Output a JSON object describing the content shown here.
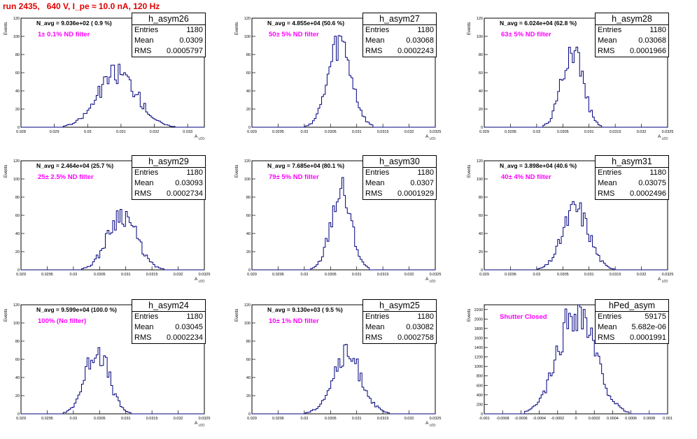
{
  "title": "run 2435,   640 V, I_pe ≈ 10.0 nA, 120 Hz",
  "colors": {
    "title": "#e00000",
    "histogram": "#00007f",
    "note": "#ff00ff"
  },
  "chart_data": [
    {
      "type": "bar",
      "name": "h_asym26",
      "navg_text": "N_avg = 9.036e+02 ( 0.9 %)",
      "filter_text": "1± 0.1% ND filter",
      "ylabel": "Events",
      "xlabel": "A_LED",
      "xlim": [
        0.028,
        0.0335
      ],
      "ylim": [
        0,
        120
      ],
      "xticks": [
        0.028,
        0.029,
        0.03,
        0.031,
        0.032,
        0.033
      ],
      "xtick_labels": [
        "0.028",
        "0.029",
        "0.03",
        "0.031",
        "0.032",
        "0.033"
      ],
      "yticks": [
        0,
        20,
        40,
        60,
        80,
        100,
        120
      ],
      "stats": {
        "entries": "1180",
        "mean": "0.0309",
        "rms": "0.0005797"
      },
      "mean": 0.0309,
      "rms": 0.0005797,
      "peak": 60,
      "seed": 26
    },
    {
      "type": "bar",
      "name": "h_asym27",
      "navg_text": "N_avg = 4.855e+04 (50.6 %)",
      "filter_text": "50± 5% ND filter",
      "ylabel": "Events",
      "xlabel": "A_LED",
      "xlim": [
        0.029,
        0.0325
      ],
      "ylim": [
        0,
        120
      ],
      "xticks": [
        0.029,
        0.0295,
        0.03,
        0.0305,
        0.031,
        0.0315,
        0.032,
        0.0325
      ],
      "xtick_labels": [
        "0.029",
        "0.0295",
        "0.03",
        "0.0305",
        "0.031",
        "0.0315",
        "0.032",
        "0.0325"
      ],
      "yticks": [
        0,
        20,
        40,
        60,
        80,
        100,
        120
      ],
      "stats": {
        "entries": "1180",
        "mean": "0.03068",
        "rms": "0.0002243"
      },
      "mean": 0.03068,
      "rms": 0.0002243,
      "peak": 90,
      "seed": 27
    },
    {
      "type": "bar",
      "name": "h_asym28",
      "navg_text": "N_avg = 6.024e+04 (62.8 %)",
      "filter_text": "63± 5% ND filter",
      "ylabel": "Events",
      "xlabel": "A_LED",
      "xlim": [
        0.029,
        0.0325
      ],
      "ylim": [
        0,
        120
      ],
      "xticks": [
        0.029,
        0.0295,
        0.03,
        0.0305,
        0.031,
        0.0315,
        0.032,
        0.0325
      ],
      "xtick_labels": [
        "0.029",
        "0.0295",
        "0.03",
        "0.0305",
        "0.031",
        "0.0315",
        "0.032",
        "0.0325"
      ],
      "yticks": [
        0,
        20,
        40,
        60,
        80,
        100,
        120
      ],
      "stats": {
        "entries": "1180",
        "mean": "0.03068",
        "rms": "0.0001966"
      },
      "mean": 0.03068,
      "rms": 0.0001966,
      "peak": 90,
      "seed": 28
    },
    {
      "type": "bar",
      "name": "h_asym29",
      "navg_text": "N_avg = 2.464e+04 (25.7 %)",
      "filter_text": "25± 2.5% ND filter",
      "ylabel": "Events",
      "xlabel": "A_LED",
      "xlim": [
        0.029,
        0.0325
      ],
      "ylim": [
        0,
        120
      ],
      "xticks": [
        0.029,
        0.0295,
        0.03,
        0.0305,
        0.031,
        0.0315,
        0.032,
        0.0325
      ],
      "xtick_labels": [
        "0.029",
        "0.0295",
        "0.03",
        "0.0305",
        "0.031",
        "0.0315",
        "0.032",
        "0.0325"
      ],
      "yticks": [
        0,
        20,
        40,
        60,
        80,
        100,
        120
      ],
      "stats": {
        "entries": "1180",
        "mean": "0.03093",
        "rms": "0.0002734"
      },
      "mean": 0.03093,
      "rms": 0.0002734,
      "peak": 62,
      "seed": 29
    },
    {
      "type": "bar",
      "name": "h_asym30",
      "navg_text": "N_avg = 7.685e+04 (80.1 %)",
      "filter_text": "79± 5% ND filter",
      "ylabel": "Events",
      "xlabel": "A_LED",
      "xlim": [
        0.029,
        0.0325
      ],
      "ylim": [
        0,
        120
      ],
      "xticks": [
        0.029,
        0.0295,
        0.03,
        0.0305,
        0.031,
        0.0315,
        0.032,
        0.0325
      ],
      "xtick_labels": [
        "0.029",
        "0.0295",
        "0.03",
        "0.0305",
        "0.031",
        "0.0315",
        "0.032",
        "0.0325"
      ],
      "yticks": [
        0,
        20,
        40,
        60,
        80,
        100,
        120
      ],
      "stats": {
        "entries": "1180",
        "mean": "0.0307",
        "rms": "0.0001929"
      },
      "mean": 0.0307,
      "rms": 0.0001929,
      "peak": 87,
      "seed": 30
    },
    {
      "type": "bar",
      "name": "h_asym31",
      "navg_text": "N_avg = 3.898e+04 (40.6 %)",
      "filter_text": "40± 4% ND filter",
      "ylabel": "Events",
      "xlabel": "A_LED",
      "xlim": [
        0.029,
        0.0325
      ],
      "ylim": [
        0,
        120
      ],
      "xticks": [
        0.029,
        0.0295,
        0.03,
        0.0305,
        0.031,
        0.0315,
        0.032,
        0.0325
      ],
      "xtick_labels": [
        "0.029",
        "0.0295",
        "0.03",
        "0.0305",
        "0.031",
        "0.0315",
        "0.032",
        "0.0325"
      ],
      "yticks": [
        0,
        20,
        40,
        60,
        80,
        100,
        120
      ],
      "stats": {
        "entries": "1180",
        "mean": "0.03075",
        "rms": "0.0002496"
      },
      "mean": 0.03075,
      "rms": 0.0002496,
      "peak": 67,
      "seed": 31
    },
    {
      "type": "bar",
      "name": "h_asym24",
      "navg_text": "N_avg = 9.599e+04 (100.0 %)",
      "filter_text": "100% (No filter)",
      "ylabel": "Events",
      "xlabel": "A_LED",
      "xlim": [
        0.029,
        0.0325
      ],
      "ylim": [
        0,
        120
      ],
      "xticks": [
        0.029,
        0.0295,
        0.03,
        0.0305,
        0.031,
        0.0315,
        0.032,
        0.0325
      ],
      "xtick_labels": [
        "0.029",
        "0.0295",
        "0.03",
        "0.0305",
        "0.031",
        "0.0315",
        "0.032",
        "0.0325"
      ],
      "yticks": [
        0,
        20,
        40,
        60,
        80,
        100,
        120
      ],
      "stats": {
        "entries": "1180",
        "mean": "0.03045",
        "rms": "0.0002234"
      },
      "mean": 0.03045,
      "rms": 0.0002234,
      "peak": 71,
      "seed": 24
    },
    {
      "type": "bar",
      "name": "h_asym25",
      "navg_text": "N_avg = 9.130e+03 ( 9.5 %)",
      "filter_text": "10± 1% ND filter",
      "ylabel": "Events",
      "xlabel": "A_LED",
      "xlim": [
        0.029,
        0.0325
      ],
      "ylim": [
        0,
        120
      ],
      "xticks": [
        0.029,
        0.0295,
        0.03,
        0.0305,
        0.031,
        0.0315,
        0.032,
        0.0325
      ],
      "xtick_labels": [
        "0.029",
        "0.0295",
        "0.03",
        "0.0305",
        "0.031",
        "0.0315",
        "0.032",
        "0.0325"
      ],
      "yticks": [
        0,
        20,
        40,
        60,
        80,
        100,
        120
      ],
      "stats": {
        "entries": "1180",
        "mean": "0.03082",
        "rms": "0.0002758"
      },
      "mean": 0.03082,
      "rms": 0.0002758,
      "peak": 64,
      "seed": 25
    },
    {
      "type": "bar",
      "name": "hPed_asym",
      "navg_text": "",
      "filter_text": "Shutter Closed",
      "ylabel": "Events",
      "xlabel": "",
      "xlim": [
        -0.001,
        0.001
      ],
      "ylim": [
        0,
        2300
      ],
      "xticks": [
        -0.001,
        -0.0008,
        -0.0006,
        -0.0004,
        -0.0002,
        0,
        0.0002,
        0.0004,
        0.0006,
        0.0008,
        0.001
      ],
      "xtick_labels": [
        "-0.001",
        "-0.0008",
        "-0.0006",
        "-0.0004",
        "-0.0002",
        "0",
        "0.0002",
        "0.0004",
        "0.0006",
        "0.0008",
        "0.001"
      ],
      "yticks": [
        0,
        200,
        400,
        600,
        800,
        1000,
        1200,
        1400,
        1600,
        1800,
        2000,
        2200
      ],
      "stats": {
        "entries": "59175",
        "mean": "5.682e-06",
        "rms": "0.0001991"
      },
      "mean": 5.682e-06,
      "rms": 0.0001991,
      "peak": 2200,
      "seed": 99
    }
  ]
}
